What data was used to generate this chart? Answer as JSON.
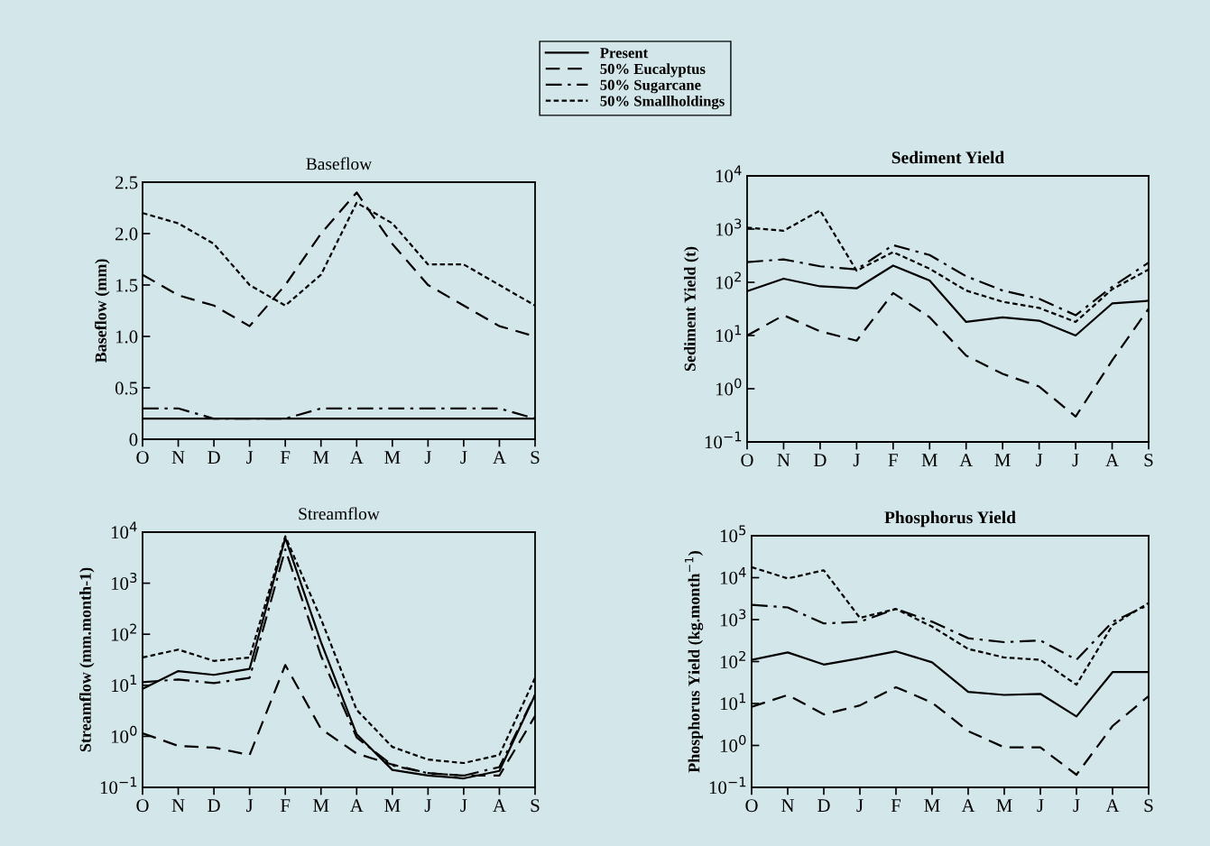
{
  "chart_data": [
    {
      "type": "line",
      "title": "Baseflow",
      "ylabel": "Baseflow (mm)",
      "categories": [
        "O",
        "N",
        "D",
        "J",
        "F",
        "M",
        "A",
        "M",
        "J",
        "J",
        "A",
        "S"
      ],
      "ylim": [
        0,
        2.5
      ],
      "yticks": [
        {
          "value": 0,
          "label": "0"
        },
        {
          "value": 0.5,
          "label": "0.5"
        },
        {
          "value": 1,
          "label": "1.0"
        },
        {
          "value": 1.5,
          "label": "1.5"
        },
        {
          "value": 2,
          "label": "2.0"
        },
        {
          "value": 2.5,
          "label": "2.5"
        }
      ],
      "legend": "top",
      "grid": false,
      "series": [
        {
          "name": "Present",
          "color": "#000000",
          "line_style": "solid",
          "values": [
            0.2,
            0.2,
            0.2,
            0.2,
            0.2,
            0.2,
            0.2,
            0.2,
            0.2,
            0.2,
            0.2,
            0.2
          ]
        },
        {
          "name": "50% Eucalyptus",
          "color": "#000000",
          "line_style": "dashed",
          "values": [
            1.6,
            1.4,
            1.3,
            1.1,
            1.5,
            2.0,
            2.4,
            1.9,
            1.5,
            1.3,
            1.1,
            1.0
          ]
        },
        {
          "name": "50% Sugarcane",
          "color": "#000000",
          "line_style": "dashdot",
          "values": [
            0.3,
            0.3,
            0.2,
            0.2,
            0.2,
            0.3,
            0.3,
            0.3,
            0.3,
            0.3,
            0.3,
            0.2
          ]
        },
        {
          "name": "50% Smallholdings",
          "color": "#000000",
          "line_style": "dotted",
          "values": [
            2.2,
            2.1,
            1.9,
            1.5,
            1.3,
            1.6,
            2.3,
            2.1,
            1.7,
            1.7,
            1.5,
            1.3
          ]
        }
      ]
    },
    {
      "type": "line",
      "title": "Sediment Yield",
      "ylabel": "Sediment Yield (t)",
      "categories": [
        "O",
        "N",
        "D",
        "J",
        "F",
        "M",
        "A",
        "M",
        "J",
        "J",
        "A",
        "S"
      ],
      "log": "y",
      "ylim": [
        0.1,
        10000
      ],
      "yticks": [
        {
          "value": 0.1,
          "label": "10$^{−1}$"
        },
        {
          "value": 1,
          "label": "10$^{0}$"
        },
        {
          "value": 10,
          "label": "10$^{1}$"
        },
        {
          "value": 100,
          "label": "10$^{2}$"
        },
        {
          "value": 1000,
          "label": "10$^{3}$"
        },
        {
          "value": 10000,
          "label": "10$^{4}$"
        }
      ],
      "grid": false,
      "series": [
        {
          "color": "#000000",
          "line_style": "solid",
          "values": [
            68,
            117,
            84,
            77,
            206,
            108,
            18,
            22,
            19,
            10,
            40,
            45
          ]
        },
        {
          "color": "#000000",
          "line_style": "dashed",
          "values": [
            10,
            24,
            12,
            8,
            63,
            22,
            4.2,
            1.9,
            1.1,
            0.3,
            3.4,
            32
          ]
        },
        {
          "color": "#000000",
          "line_style": "dashdot",
          "values": [
            240,
            270,
            200,
            174,
            500,
            325,
            130,
            70,
            49,
            24,
            82,
            235
          ]
        },
        {
          "color": "#000000",
          "line_style": "dotted",
          "values": [
            1070,
            930,
            2240,
            165,
            370,
            180,
            70,
            43,
            33,
            18,
            74,
            174
          ]
        }
      ]
    },
    {
      "type": "line",
      "title": "Streamflow",
      "ylabel": "Streamflow (mm.month-1)",
      "categories": [
        "O",
        "N",
        "D",
        "J",
        "F",
        "M",
        "A",
        "M",
        "J",
        "J",
        "A",
        "S"
      ],
      "log": "y",
      "ylim": [
        0.1,
        10000
      ],
      "yticks": [
        {
          "value": 0.1,
          "label": "10$^{−1}$"
        },
        {
          "value": 1,
          "label": "10$^{0}$"
        },
        {
          "value": 10,
          "label": "10$^{1}$"
        },
        {
          "value": 100,
          "label": "10$^{2}$"
        },
        {
          "value": 1000,
          "label": "10$^{3}$"
        },
        {
          "value": 10000,
          "label": "10$^{4}$"
        }
      ],
      "grid": false,
      "series": [
        {
          "color": "#000000",
          "line_style": "solid",
          "values": [
            8.5,
            19,
            16,
            21,
            7700,
            70,
            1.1,
            0.22,
            0.17,
            0.15,
            0.21,
            6.5
          ]
        },
        {
          "color": "#000000",
          "line_style": "dashed",
          "values": [
            1.15,
            0.65,
            0.6,
            0.43,
            25,
            1.4,
            0.46,
            0.28,
            0.19,
            0.17,
            0.17,
            2.5
          ]
        },
        {
          "color": "#000000",
          "line_style": "dashdot",
          "values": [
            11.5,
            13,
            11,
            14,
            4600,
            38,
            0.95,
            0.27,
            0.19,
            0.17,
            0.25,
            6.5
          ]
        },
        {
          "color": "#000000",
          "line_style": "dotted",
          "values": [
            35,
            50,
            30,
            35,
            8300,
            200,
            3.3,
            0.62,
            0.35,
            0.3,
            0.43,
            14
          ]
        }
      ]
    },
    {
      "type": "line",
      "title": "Phosphorus Yield",
      "ylabel": "Phosphorus Yield (kg.month$^{−1}$)",
      "categories": [
        "O",
        "N",
        "D",
        "J",
        "F",
        "M",
        "A",
        "M",
        "J",
        "J",
        "A",
        "S"
      ],
      "log": "y",
      "ylim": [
        0.1,
        100000
      ],
      "yticks": [
        {
          "value": 0.1,
          "label": "10$^{−1}$"
        },
        {
          "value": 1,
          "label": "10$^{0}$"
        },
        {
          "value": 10,
          "label": "10$^{1}$"
        },
        {
          "value": 100,
          "label": "10$^{2}$"
        },
        {
          "value": 1000,
          "label": "10$^{3}$"
        },
        {
          "value": 10000,
          "label": "10$^{4}$"
        },
        {
          "value": 100000,
          "label": "10$^{5}$"
        }
      ],
      "grid": false,
      "series": [
        {
          "color": "#000000",
          "line_style": "solid",
          "values": [
            110,
            165,
            85,
            120,
            175,
            96,
            19,
            16,
            17,
            4.9,
            56,
            56
          ]
        },
        {
          "color": "#000000",
          "line_style": "dashed",
          "values": [
            8.3,
            16,
            5.5,
            9,
            24.5,
            10.5,
            2.2,
            0.9,
            0.9,
            0.2,
            2.9,
            15
          ]
        },
        {
          "color": "#000000",
          "line_style": "dashdot",
          "values": [
            2250,
            1950,
            810,
            890,
            1800,
            890,
            360,
            290,
            320,
            110,
            890,
            2250
          ]
        },
        {
          "color": "#000000",
          "line_style": "dotted",
          "values": [
            17800,
            9600,
            15000,
            1100,
            1800,
            680,
            200,
            125,
            110,
            28,
            740,
            2500
          ]
        }
      ]
    }
  ]
}
